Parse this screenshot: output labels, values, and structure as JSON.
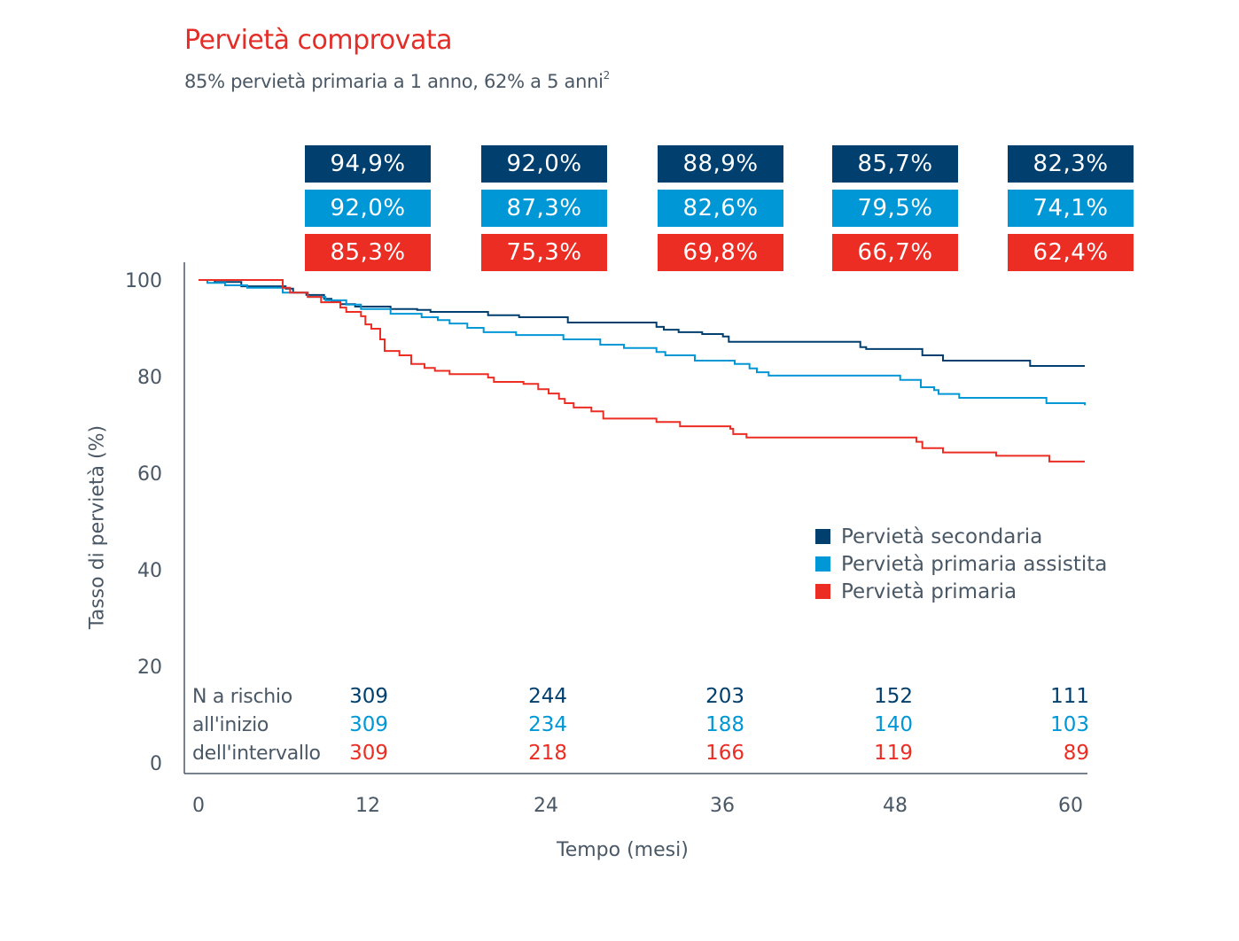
{
  "header": {
    "title": "Pervietà comprovata",
    "subtitle": "85% pervietà primaria a 1 anno, 62% a 5 anni",
    "subtitle_ref": "2"
  },
  "colors": {
    "secondary": "#003f6e",
    "assisted": "#0097d6",
    "primary": "#ec2d24",
    "axis": "#4a5866"
  },
  "chart_data": {
    "type": "line",
    "subtype": "kaplan-meier-step",
    "title": "Pervietà comprovata",
    "xlabel": "Tempo (mesi)",
    "ylabel": "Tasso di pervietà (%)",
    "xlim": [
      0,
      60
    ],
    "ylim": [
      0,
      100
    ],
    "x_ticks": [
      "0",
      "12",
      "24",
      "36",
      "48",
      "60"
    ],
    "y_ticks": [
      "0",
      "20",
      "40",
      "60",
      "80",
      "100"
    ],
    "grid": false,
    "legend_position": "center-right",
    "legend": [
      "Pervietà secondaria",
      "Pervietà primaria assistita",
      "Pervietà primaria"
    ],
    "milestone_months": [
      12,
      24,
      36,
      48,
      60
    ],
    "milestones": [
      {
        "name": "Pervietà secondaria",
        "labels": [
          "94,9%",
          "92,0%",
          "88,9%",
          "85,7%",
          "82,3%"
        ]
      },
      {
        "name": "Pervietà primaria assistita",
        "labels": [
          "92,0%",
          "87,3%",
          "82,6%",
          "79,5%",
          "74,1%"
        ]
      },
      {
        "name": "Pervietà primaria",
        "labels": [
          "85,3%",
          "75,3%",
          "69,8%",
          "66,7%",
          "62,4%"
        ]
      }
    ],
    "series": [
      {
        "name": "Pervietà secondaria",
        "color_key": "secondary",
        "points": [
          [
            0,
            100
          ],
          [
            1.1,
            99.6
          ],
          [
            2.9,
            98.7
          ],
          [
            5.9,
            98.2
          ],
          [
            6.4,
            97.4
          ],
          [
            7.3,
            96.9
          ],
          [
            8.5,
            96.1
          ],
          [
            9.0,
            95.6
          ],
          [
            9.6,
            95.0
          ],
          [
            10.6,
            94.5
          ],
          [
            13.0,
            94.0
          ],
          [
            14.8,
            93.8
          ],
          [
            15.7,
            93.4
          ],
          [
            19.6,
            92.7
          ],
          [
            21.7,
            92.3
          ],
          [
            25.0,
            91.2
          ],
          [
            31.0,
            90.3
          ],
          [
            31.5,
            89.7
          ],
          [
            32.5,
            89.2
          ],
          [
            34.1,
            88.8
          ],
          [
            35.5,
            88.3
          ],
          [
            35.9,
            87.2
          ],
          [
            44.8,
            86.1
          ],
          [
            45.2,
            85.7
          ],
          [
            49.0,
            84.4
          ],
          [
            50.4,
            83.3
          ],
          [
            56.3,
            82.2
          ],
          [
            60,
            82.2
          ]
        ]
      },
      {
        "name": "Pervietà primaria assistita",
        "color_key": "assisted",
        "points": [
          [
            0,
            100
          ],
          [
            0.6,
            99.4
          ],
          [
            1.8,
            98.9
          ],
          [
            3.3,
            98.4
          ],
          [
            5.7,
            97.4
          ],
          [
            7.4,
            96.5
          ],
          [
            8.6,
            95.8
          ],
          [
            10.0,
            94.9
          ],
          [
            11.0,
            94.0
          ],
          [
            13.0,
            93.0
          ],
          [
            15.1,
            92.3
          ],
          [
            16.2,
            91.7
          ],
          [
            17.0,
            91.0
          ],
          [
            18.2,
            90.1
          ],
          [
            19.3,
            89.2
          ],
          [
            21.5,
            88.6
          ],
          [
            24.7,
            87.7
          ],
          [
            27.2,
            86.6
          ],
          [
            28.8,
            85.9
          ],
          [
            31.0,
            85.1
          ],
          [
            31.6,
            84.4
          ],
          [
            33.6,
            83.3
          ],
          [
            36.3,
            82.6
          ],
          [
            37.3,
            81.7
          ],
          [
            37.8,
            80.9
          ],
          [
            38.6,
            80.2
          ],
          [
            47.5,
            79.3
          ],
          [
            48.9,
            77.8
          ],
          [
            49.8,
            77.2
          ],
          [
            50.1,
            76.4
          ],
          [
            51.5,
            75.6
          ],
          [
            57.4,
            74.5
          ],
          [
            60,
            74.1
          ]
        ]
      },
      {
        "name": "Pervietà primaria",
        "color_key": "primary",
        "points": [
          [
            0,
            100
          ],
          [
            5.7,
            98.4
          ],
          [
            6.2,
            97.4
          ],
          [
            7.4,
            96.5
          ],
          [
            8.3,
            95.4
          ],
          [
            9.6,
            94.3
          ],
          [
            10.0,
            93.4
          ],
          [
            11.0,
            92.5
          ],
          [
            11.3,
            90.8
          ],
          [
            11.7,
            89.9
          ],
          [
            12.3,
            87.7
          ],
          [
            12.6,
            85.3
          ],
          [
            13.6,
            84.4
          ],
          [
            14.4,
            82.6
          ],
          [
            15.3,
            81.8
          ],
          [
            16.0,
            81.2
          ],
          [
            17.0,
            80.5
          ],
          [
            19.6,
            79.8
          ],
          [
            20.0,
            78.9
          ],
          [
            22.0,
            78.5
          ],
          [
            23.0,
            77.4
          ],
          [
            23.7,
            76.5
          ],
          [
            24.4,
            75.4
          ],
          [
            24.8,
            74.5
          ],
          [
            25.4,
            73.6
          ],
          [
            26.6,
            72.8
          ],
          [
            27.4,
            71.3
          ],
          [
            31.0,
            70.6
          ],
          [
            32.6,
            69.7
          ],
          [
            36.0,
            69.2
          ],
          [
            36.2,
            68.1
          ],
          [
            37.1,
            67.4
          ],
          [
            48.6,
            66.5
          ],
          [
            49.0,
            65.2
          ],
          [
            50.4,
            64.3
          ],
          [
            54.0,
            63.6
          ],
          [
            57.6,
            62.4
          ],
          [
            60,
            62.4
          ]
        ]
      }
    ],
    "risk_table": {
      "label_lines": [
        "N a rischio",
        "all'inizio",
        "dell'intervallo"
      ],
      "columns": [
        "0",
        "12",
        "24",
        "36",
        "48"
      ],
      "rows": [
        {
          "name": "Pervietà secondaria",
          "values": [
            "309",
            "244",
            "203",
            "152",
            "111"
          ]
        },
        {
          "name": "Pervietà primaria assistita",
          "values": [
            "309",
            "234",
            "188",
            "140",
            "103"
          ]
        },
        {
          "name": "Pervietà primaria",
          "values": [
            "309",
            "218",
            "166",
            "119",
            "89"
          ]
        }
      ]
    }
  }
}
